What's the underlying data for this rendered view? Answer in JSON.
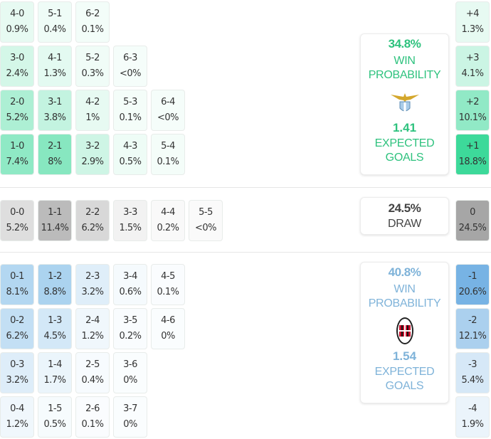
{
  "home": {
    "team": "Lazio",
    "win_probability": "34.8%",
    "win_label_1": "WIN",
    "win_label_2": "PROBABILITY",
    "expected_goals": "1.41",
    "xg_label_1": "EXPECTED",
    "xg_label_2": "GOALS",
    "color": "#2ec27e",
    "crest_icon": "lazio-crest-icon"
  },
  "away": {
    "team": "AC Milan",
    "win_probability": "40.8%",
    "win_label_1": "WIN",
    "win_label_2": "PROBABILITY",
    "expected_goals": "1.54",
    "xg_label_1": "EXPECTED",
    "xg_label_2": "GOALS",
    "color": "#7fb3d9",
    "crest_icon": "milan-crest-icon"
  },
  "draw": {
    "probability": "24.5%",
    "label": "DRAW"
  },
  "home_scores": [
    [
      {
        "s": "4-0",
        "p": "0.9%",
        "i": 0.12
      },
      {
        "s": "5-1",
        "p": "0.4%",
        "i": 0.05
      },
      {
        "s": "6-2",
        "p": "0.1%",
        "i": 0.02
      }
    ],
    [
      {
        "s": "3-0",
        "p": "2.4%",
        "i": 0.28
      },
      {
        "s": "4-1",
        "p": "1.3%",
        "i": 0.15
      },
      {
        "s": "5-2",
        "p": "0.3%",
        "i": 0.04
      },
      {
        "s": "6-3",
        "p": "<0%",
        "i": 0.0
      }
    ],
    [
      {
        "s": "2-0",
        "p": "5.2%",
        "i": 0.6
      },
      {
        "s": "3-1",
        "p": "3.8%",
        "i": 0.42
      },
      {
        "s": "4-2",
        "p": "1%",
        "i": 0.12
      },
      {
        "s": "5-3",
        "p": "0.1%",
        "i": 0.01
      },
      {
        "s": "6-4",
        "p": "<0%",
        "i": 0.0
      }
    ],
    [
      {
        "s": "1-0",
        "p": "7.4%",
        "i": 0.85
      },
      {
        "s": "2-1",
        "p": "8%",
        "i": 0.92
      },
      {
        "s": "3-2",
        "p": "2.9%",
        "i": 0.33
      },
      {
        "s": "4-3",
        "p": "0.5%",
        "i": 0.06
      },
      {
        "s": "5-4",
        "p": "0.1%",
        "i": 0.01
      }
    ]
  ],
  "draw_scores": [
    {
      "s": "0-0",
      "p": "5.2%",
      "i": 0.45
    },
    {
      "s": "1-1",
      "p": "11.4%",
      "i": 1.0
    },
    {
      "s": "2-2",
      "p": "6.2%",
      "i": 0.55
    },
    {
      "s": "3-3",
      "p": "1.5%",
      "i": 0.13
    },
    {
      "s": "4-4",
      "p": "0.2%",
      "i": 0.02
    },
    {
      "s": "5-5",
      "p": "<0%",
      "i": 0.0
    }
  ],
  "away_scores": [
    [
      {
        "s": "0-1",
        "p": "8.1%",
        "i": 0.9
      },
      {
        "s": "1-2",
        "p": "8.8%",
        "i": 1.0
      },
      {
        "s": "2-3",
        "p": "3.2%",
        "i": 0.35
      },
      {
        "s": "3-4",
        "p": "0.6%",
        "i": 0.07
      },
      {
        "s": "4-5",
        "p": "0.1%",
        "i": 0.01
      }
    ],
    [
      {
        "s": "0-2",
        "p": "6.2%",
        "i": 0.7
      },
      {
        "s": "1-3",
        "p": "4.5%",
        "i": 0.5
      },
      {
        "s": "2-4",
        "p": "1.2%",
        "i": 0.13
      },
      {
        "s": "3-5",
        "p": "0.2%",
        "i": 0.02
      },
      {
        "s": "4-6",
        "p": "0%",
        "i": 0.0
      }
    ],
    [
      {
        "s": "0-3",
        "p": "3.2%",
        "i": 0.36
      },
      {
        "s": "1-4",
        "p": "1.7%",
        "i": 0.19
      },
      {
        "s": "2-5",
        "p": "0.4%",
        "i": 0.04
      },
      {
        "s": "3-6",
        "p": "0%",
        "i": 0.0
      }
    ],
    [
      {
        "s": "0-4",
        "p": "1.2%",
        "i": 0.13
      },
      {
        "s": "1-5",
        "p": "0.5%",
        "i": 0.05
      },
      {
        "s": "2-6",
        "p": "0.1%",
        "i": 0.01
      },
      {
        "s": "3-7",
        "p": "0%",
        "i": 0.0
      }
    ]
  ],
  "margins_home": [
    {
      "m": "+4",
      "p": "1.3%",
      "i": 0.07
    },
    {
      "m": "+3",
      "p": "4.1%",
      "i": 0.22
    },
    {
      "m": "+2",
      "p": "10.1%",
      "i": 0.54
    },
    {
      "m": "+1",
      "p": "18.8%",
      "i": 1.0
    }
  ],
  "margin_draw": {
    "m": "0",
    "p": "24.5%"
  },
  "margins_away": [
    {
      "m": "-1",
      "p": "20.6%",
      "i": 1.0
    },
    {
      "m": "-2",
      "p": "12.1%",
      "i": 0.59
    },
    {
      "m": "-3",
      "p": "5.4%",
      "i": 0.26
    },
    {
      "m": "-4",
      "p": "1.9%",
      "i": 0.09
    }
  ]
}
